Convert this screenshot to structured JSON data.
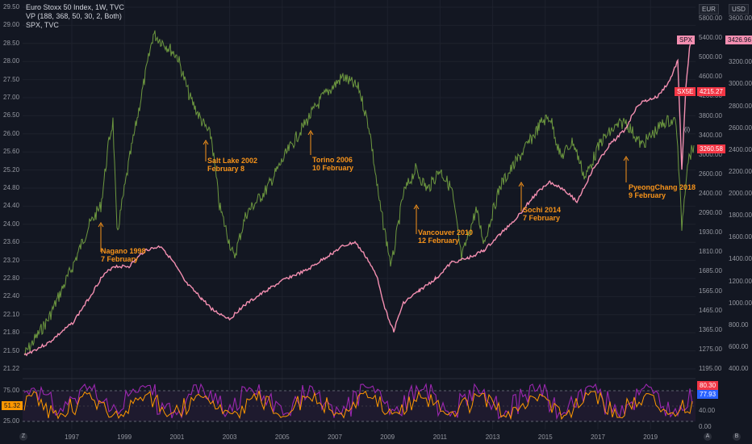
{
  "legend": {
    "line1": "Euro Stoxx 50 Index, 1W, TVC",
    "line2": "VP (188, 368, 50, 30, 2, Both)",
    "line3": "SPX, TVC"
  },
  "scale_buttons": {
    "eur": "EUR",
    "usd": "USD"
  },
  "left_axis": [
    "29.50",
    "29.00",
    "28.50",
    "28.00",
    "27.50",
    "27.00",
    "26.50",
    "26.00",
    "25.60",
    "25.20",
    "24.80",
    "24.40",
    "24.00",
    "23.60",
    "23.20",
    "22.80",
    "22.40",
    "22.10",
    "21.80",
    "21.50",
    "21.22"
  ],
  "mid_axis": [
    "5800.00",
    "5400.00",
    "5000.00",
    "4600.00",
    "4200.00",
    "3800.00",
    "3400.00",
    "3000.00",
    "2600.00",
    "2400.00",
    "2090.00",
    "1930.00",
    "1810.00",
    "1685.00",
    "1565.00",
    "1465.00",
    "1365.00",
    "1275.00",
    "1195.00"
  ],
  "right_axis": [
    "3600.00",
    "3400.00",
    "3200.00",
    "3000.00",
    "2800.00",
    "2600.00",
    "2400.00",
    "2200.00",
    "2000.00",
    "1800.00",
    "1600.00",
    "1400.00",
    "1200.00",
    "1000.00",
    "800.00",
    "600.00",
    "400.00"
  ],
  "rsi_axis_left": [
    "75.00",
    "51.32",
    "25.00"
  ],
  "rsi_axis_right": [
    "80.00",
    "40.00",
    "0.00"
  ],
  "x_axis": [
    "1997",
    "1999",
    "2001",
    "2003",
    "2005",
    "2007",
    "2009",
    "2011",
    "2013",
    "2015",
    "2017",
    "2019"
  ],
  "badges": {
    "spx_label": "SPX",
    "spx_value": "3426.96",
    "sx5e_label": "SX5E",
    "sx5e_value": "4215.27",
    "last_value": "3260.58",
    "rsi_left": "51.32",
    "rsi_r1": "80.30",
    "rsi_r2": "77.93"
  },
  "annotations": [
    {
      "line1": "Nagano 1998",
      "line2": "7 February"
    },
    {
      "line1": "Salt Lake 2002",
      "line2": "February 8"
    },
    {
      "line1": "Torino 2006",
      "line2": "10 February"
    },
    {
      "line1": "Vancouver 2010",
      "line2": "12 February"
    },
    {
      "line1": "Sochi 2014",
      "line2": "7 February"
    },
    {
      "line1": "PyeongChang 2018",
      "line2": "9 February"
    }
  ],
  "corner": {
    "left": "Z",
    "mid": "A",
    "right": "B",
    "marker": "(i)"
  },
  "colors": {
    "background": "#131722",
    "spx": "#f48fb1",
    "sx5e": "#8bc34a",
    "annotation": "#f7931a",
    "rsi_purple": "#9c27b0",
    "rsi_orange": "#ff9800",
    "badge_red": "#f23645"
  }
}
